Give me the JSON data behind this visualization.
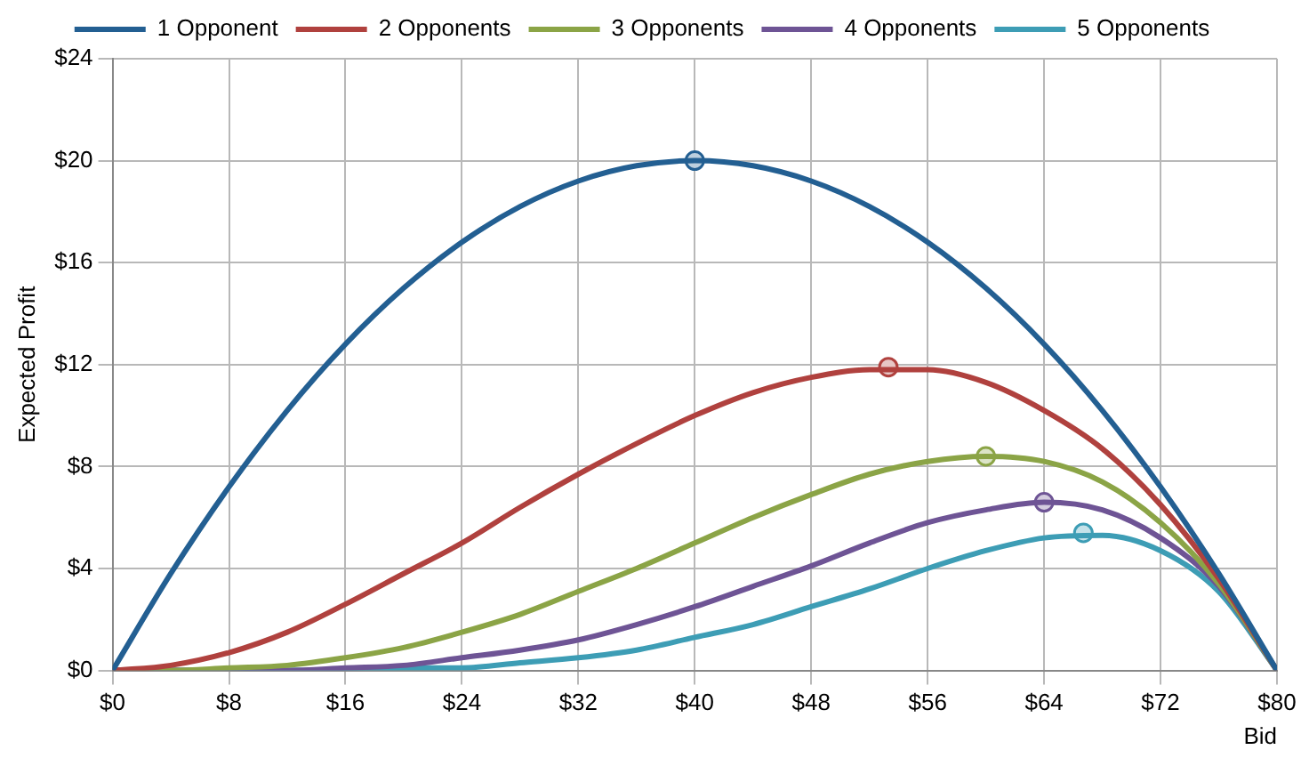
{
  "chart_data": {
    "type": "line",
    "xlabel": "Bid",
    "ylabel": "Expected Profit",
    "x": [
      0,
      4,
      8,
      12,
      16,
      20,
      24,
      28,
      32,
      36,
      40,
      44,
      48,
      52,
      56,
      60,
      64,
      68,
      72,
      76,
      80
    ],
    "series": [
      {
        "name": "1 Opponent",
        "color": "#235f92",
        "values": [
          0,
          3.8,
          7.2,
          10.2,
          12.8,
          15,
          16.8,
          18.2,
          19.2,
          19.8,
          20,
          19.8,
          19.2,
          18.2,
          16.8,
          15,
          12.8,
          10.2,
          7.2,
          3.8,
          0
        ]
      },
      {
        "name": "2 Opponents",
        "color": "#b0413e",
        "values": [
          0,
          0.2,
          0.7,
          1.5,
          2.6,
          3.8,
          5,
          6.4,
          7.7,
          8.9,
          10,
          10.9,
          11.5,
          11.8,
          11.8,
          11.3,
          10.2,
          8.7,
          6.5,
          3.6,
          0
        ]
      },
      {
        "name": "3 Opponents",
        "color": "#8ba446",
        "values": [
          0,
          0,
          0.1,
          0.2,
          0.5,
          0.9,
          1.5,
          2.2,
          3.1,
          4,
          5,
          6,
          6.9,
          7.7,
          8.2,
          8.4,
          8.2,
          7.4,
          5.8,
          3.4,
          0
        ]
      },
      {
        "name": "4 Opponents",
        "color": "#6e5495",
        "values": [
          0,
          0,
          0,
          0,
          0.1,
          0.2,
          0.5,
          0.8,
          1.2,
          1.8,
          2.5,
          3.3,
          4.1,
          5,
          5.8,
          6.3,
          6.6,
          6.3,
          5.2,
          3.3,
          0
        ]
      },
      {
        "name": "5 Opponents",
        "color": "#3d9db5",
        "values": [
          0,
          0,
          0,
          0,
          0,
          0.1,
          0.1,
          0.3,
          0.5,
          0.8,
          1.3,
          1.8,
          2.5,
          3.2,
          4,
          4.7,
          5.2,
          5.3,
          4.7,
          3.1,
          0
        ]
      },
      {
        "type": "scatter",
        "marker": "circle",
        "x": [
          40,
          53.3,
          60,
          64,
          66.7
        ],
        "values": [
          20,
          11.9,
          8.4,
          6.6,
          5.4
        ],
        "colors": [
          "#235f92",
          "#b0413e",
          "#8ba446",
          "#6e5495",
          "#3d9db5"
        ]
      }
    ],
    "xlim": [
      0,
      80
    ],
    "xticks": [
      {
        "value": 0,
        "label": "$0"
      },
      {
        "value": 8,
        "label": "$8"
      },
      {
        "value": 16,
        "label": "$16"
      },
      {
        "value": 24,
        "label": "$24"
      },
      {
        "value": 32,
        "label": "$32"
      },
      {
        "value": 40,
        "label": "$40"
      },
      {
        "value": 48,
        "label": "$48"
      },
      {
        "value": 56,
        "label": "$56"
      },
      {
        "value": 64,
        "label": "$64"
      },
      {
        "value": 72,
        "label": "$72"
      },
      {
        "value": 80,
        "label": "$80"
      }
    ],
    "ylim": [
      0,
      24
    ],
    "yticks": [
      {
        "value": 0,
        "label": "$0"
      },
      {
        "value": 4,
        "label": "$4"
      },
      {
        "value": 8,
        "label": "$8"
      },
      {
        "value": 12,
        "label": "$12"
      },
      {
        "value": 16,
        "label": "$16"
      },
      {
        "value": 20,
        "label": "$20"
      },
      {
        "value": 24,
        "label": "$24"
      }
    ],
    "grid": true,
    "legend": "top",
    "marker": "none",
    "line_style": "solid"
  }
}
